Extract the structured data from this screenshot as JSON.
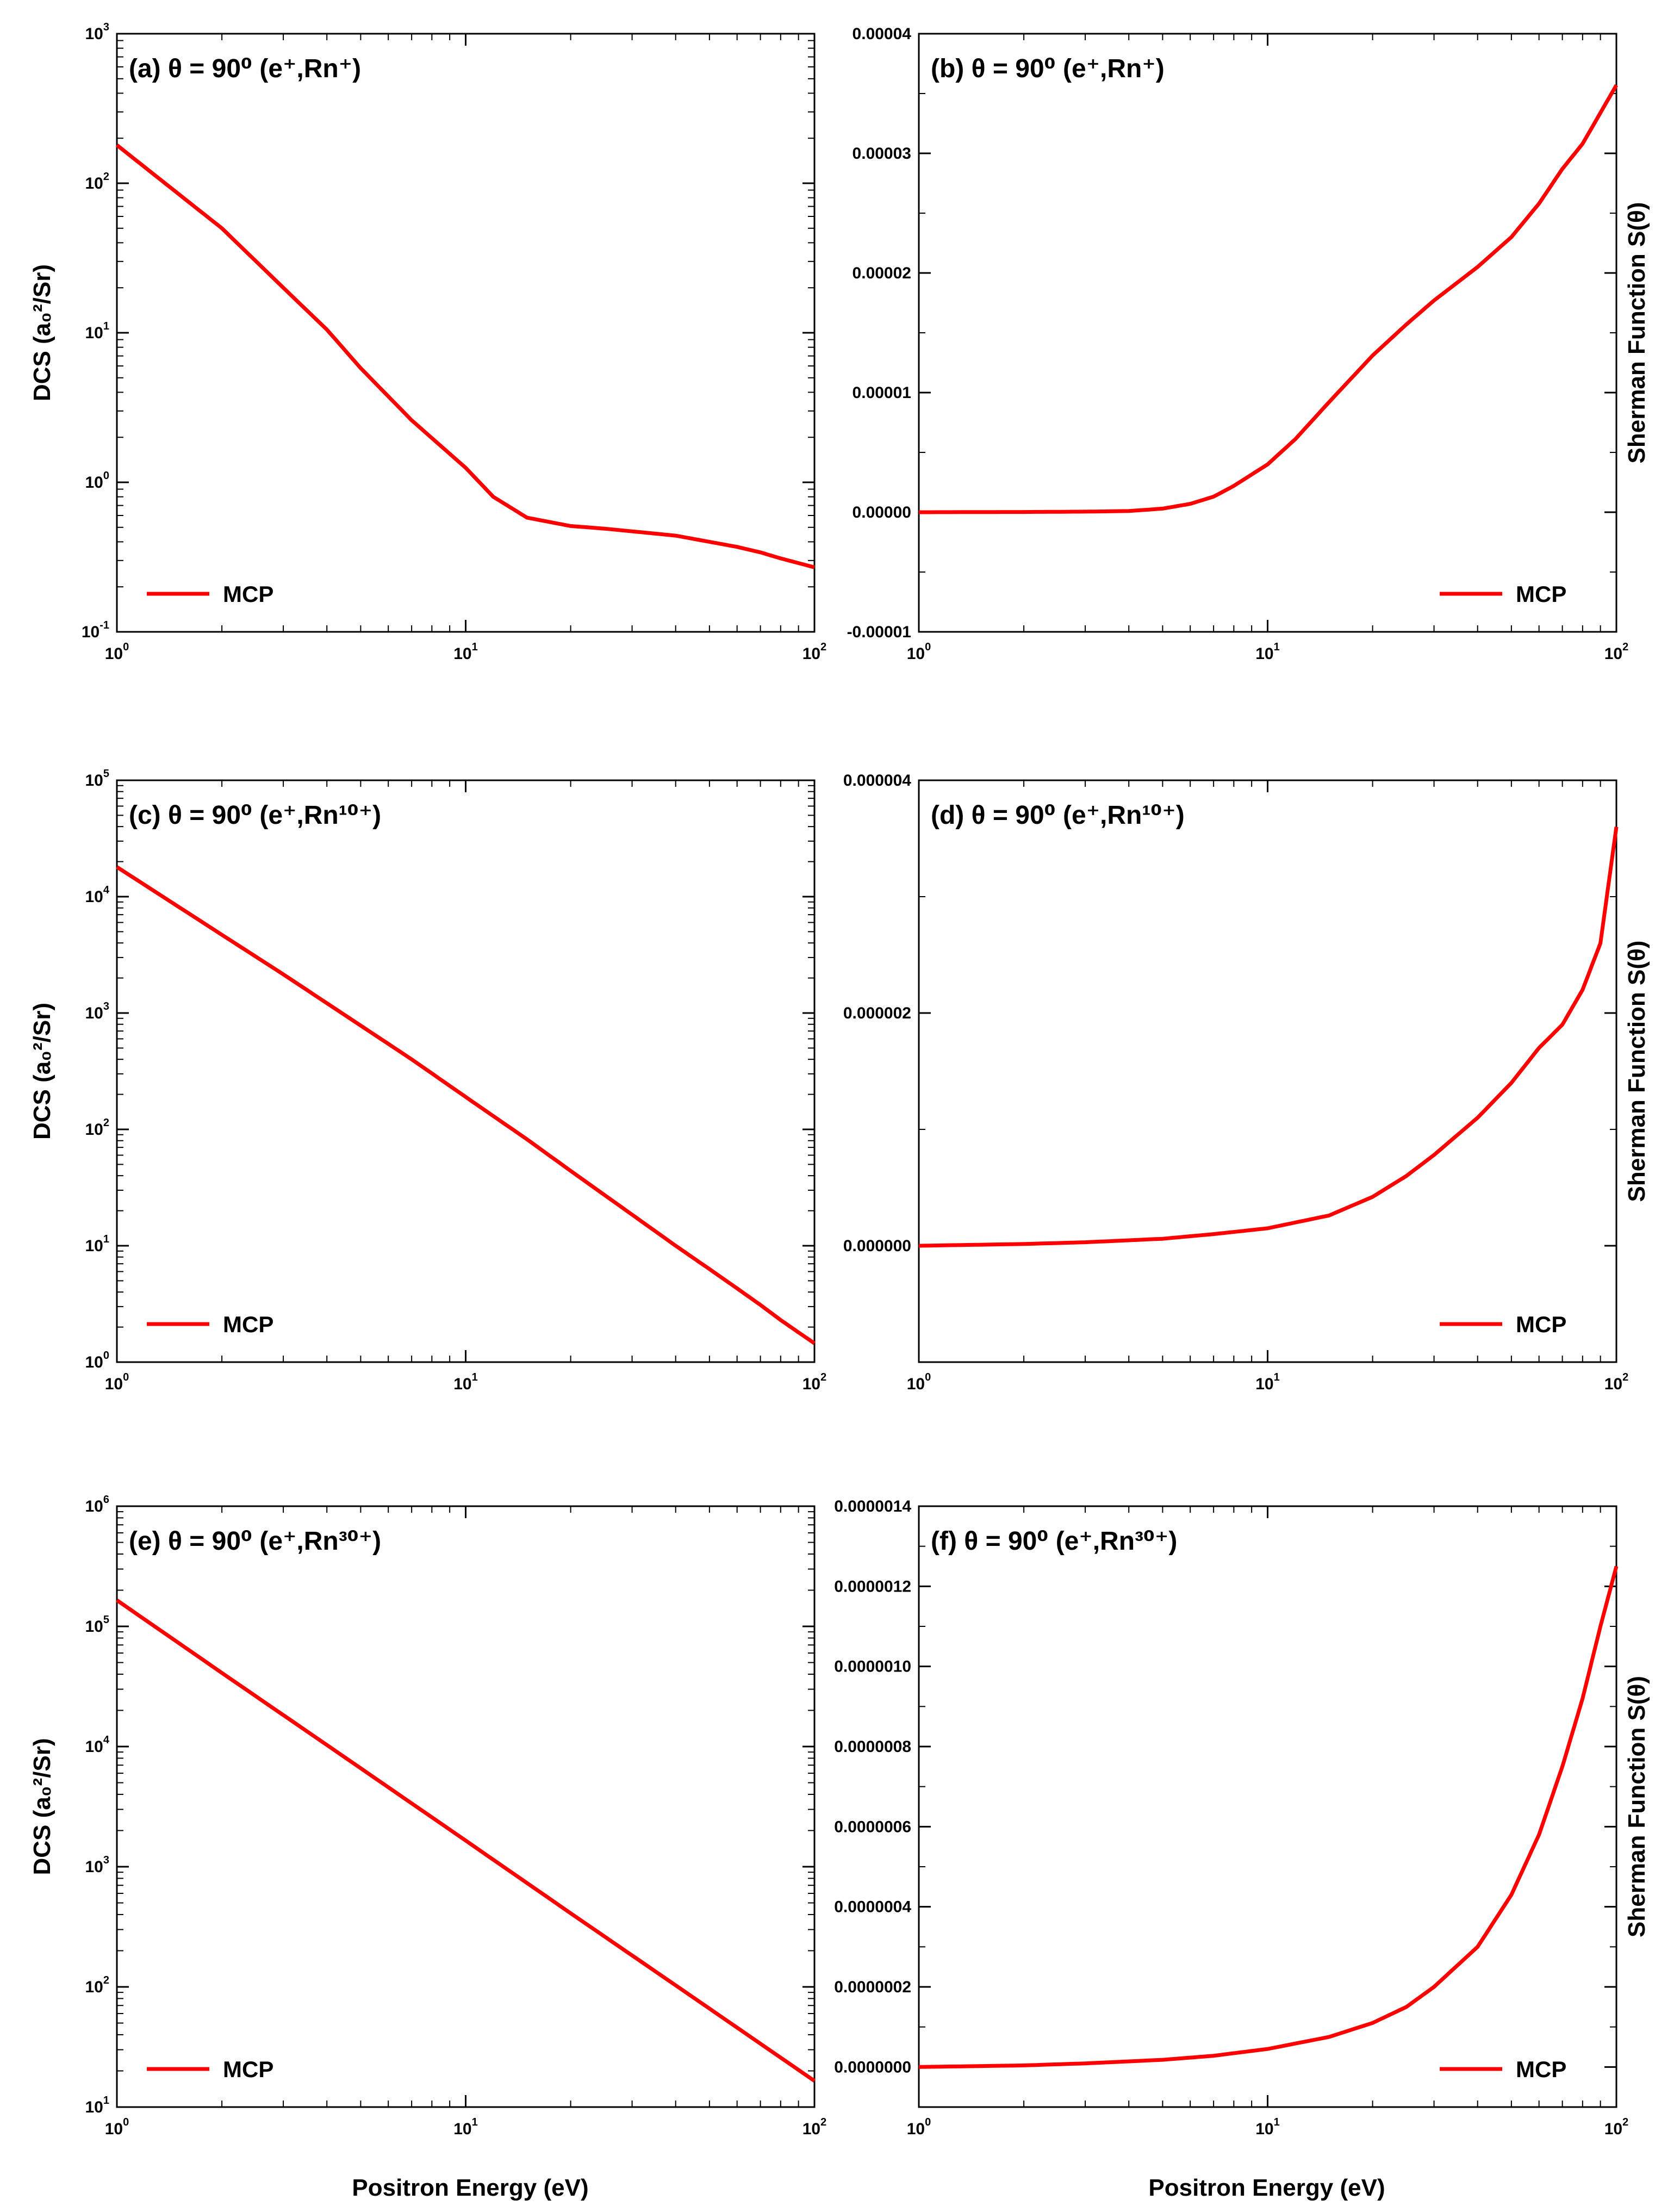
{
  "figure": {
    "xlabel": "Positron Energy (eV)",
    "curve_color": "#ff0000"
  },
  "chart_data": [
    {
      "id": "a",
      "type": "line",
      "label": "(a)",
      "title": "θ = 90⁰ (e⁺,Rn⁺)",
      "ylabel": "DCS (a₀²/Sr)",
      "yscale": "log",
      "xscale": "log",
      "xlim": [
        1,
        100
      ],
      "ylim": [
        0.1,
        1000
      ],
      "xticks": [
        1,
        10,
        100
      ],
      "yticks": [
        0.1,
        1,
        10,
        100,
        1000
      ],
      "legend": "MCP",
      "legend_position": "bottom-left",
      "series": [
        {
          "name": "MCP",
          "x": [
            1,
            1.5,
            2,
            3,
            4,
            5,
            7,
            10,
            12,
            15,
            20,
            25,
            30,
            40,
            50,
            60,
            70,
            80,
            100
          ],
          "y": [
            180,
            85,
            50,
            20,
            10.5,
            5.8,
            2.6,
            1.25,
            0.8,
            0.58,
            0.51,
            0.49,
            0.47,
            0.44,
            0.4,
            0.37,
            0.34,
            0.31,
            0.27
          ]
        }
      ]
    },
    {
      "id": "b",
      "type": "line",
      "label": "(b)",
      "title": "θ = 90⁰ (e⁺,Rn⁺)",
      "ylabel": "Sherman Function S(θ)",
      "yscale": "linear",
      "xscale": "log",
      "xlim": [
        1,
        100
      ],
      "ylim": [
        -1e-05,
        4e-05
      ],
      "xticks": [
        1,
        10,
        100
      ],
      "yticks": [
        -1e-05,
        0,
        1e-05,
        2e-05,
        3e-05,
        4e-05
      ],
      "yticklabels": [
        "-0.00001",
        "0.00000",
        "0.00001",
        "0.00002",
        "0.00003",
        "0.00004"
      ],
      "legend": "MCP",
      "legend_position": "bottom-right",
      "series": [
        {
          "name": "MCP",
          "x": [
            1,
            2,
            3,
            4,
            5,
            6,
            7,
            8,
            10,
            12,
            15,
            20,
            25,
            30,
            40,
            50,
            60,
            70,
            80,
            100
          ],
          "y": [
            0,
            2e-08,
            5e-08,
            1e-07,
            3e-07,
            7e-07,
            1.3e-06,
            2.2e-06,
            4e-06,
            6.1e-06,
            9.2e-06,
            1.31e-05,
            1.57e-05,
            1.77e-05,
            2.05e-05,
            2.3e-05,
            2.58e-05,
            2.87e-05,
            3.08e-05,
            3.57e-05
          ]
        }
      ]
    },
    {
      "id": "c",
      "type": "line",
      "label": "(c)",
      "title": "θ = 90⁰ (e⁺,Rn¹⁰⁺)",
      "ylabel": "DCS (a₀²/Sr)",
      "yscale": "log",
      "xscale": "log",
      "xlim": [
        1,
        100
      ],
      "ylim": [
        1,
        100000
      ],
      "xticks": [
        1,
        10,
        100
      ],
      "yticks": [
        1,
        10,
        100,
        1000,
        10000,
        100000
      ],
      "legend": "MCP",
      "legend_position": "bottom-left",
      "series": [
        {
          "name": "MCP",
          "x": [
            1,
            2,
            3,
            5,
            7,
            10,
            15,
            20,
            30,
            40,
            50,
            60,
            70,
            80,
            90,
            100
          ],
          "y": [
            18000,
            4700,
            2150,
            780,
            400,
            190,
            82,
            44,
            18.5,
            10,
            6.3,
            4.3,
            3.1,
            2.3,
            1.8,
            1.45
          ]
        }
      ]
    },
    {
      "id": "d",
      "type": "line",
      "label": "(d)",
      "title": "θ = 90⁰ (e⁺,Rn¹⁰⁺)",
      "ylabel": "Sherman Function S(θ)",
      "yscale": "linear",
      "xscale": "log",
      "xlim": [
        1,
        100
      ],
      "ylim": [
        -1e-06,
        4e-06
      ],
      "xticks": [
        1,
        10,
        100
      ],
      "yticks": [
        0,
        2e-06,
        4e-06
      ],
      "yticklabels": [
        "0.000000",
        "0.000002",
        "0.000004"
      ],
      "legend": "MCP",
      "legend_position": "bottom-right",
      "series": [
        {
          "name": "MCP",
          "x": [
            1,
            2,
            3,
            5,
            7,
            10,
            15,
            20,
            25,
            30,
            40,
            50,
            60,
            70,
            80,
            90,
            100
          ],
          "y": [
            0,
            1.5e-08,
            3e-08,
            6e-08,
            1e-07,
            1.5e-07,
            2.6e-07,
            4.2e-07,
            6e-07,
            7.8e-07,
            1.1e-06,
            1.4e-06,
            1.7e-06,
            1.9e-06,
            2.2e-06,
            2.6e-06,
            3.6e-06
          ]
        }
      ]
    },
    {
      "id": "e",
      "type": "line",
      "label": "(e)",
      "title": "θ = 90⁰ (e⁺,Rn³⁰⁺)",
      "ylabel": "DCS (a₀²/Sr)",
      "yscale": "log",
      "xscale": "log",
      "xlim": [
        1,
        100
      ],
      "ylim": [
        10,
        1000000
      ],
      "xticks": [
        1,
        10,
        100
      ],
      "yticks": [
        10,
        100,
        1000,
        10000,
        100000,
        1000000
      ],
      "legend": "MCP",
      "legend_position": "bottom-left",
      "series": [
        {
          "name": "MCP",
          "x": [
            1,
            2,
            5,
            10,
            20,
            50,
            100
          ],
          "y": [
            165000,
            41000,
            6600,
            1650,
            410,
            66,
            16.5
          ]
        }
      ]
    },
    {
      "id": "f",
      "type": "line",
      "label": "(f)",
      "title": "θ = 90⁰ (e⁺,Rn³⁰⁺)",
      "ylabel": "Sherman Function S(θ)",
      "yscale": "linear",
      "xscale": "log",
      "xlim": [
        1,
        100
      ],
      "ylim": [
        -1e-07,
        1.4e-06
      ],
      "xticks": [
        1,
        10,
        100
      ],
      "yticks": [
        0,
        2e-07,
        4e-07,
        6e-07,
        8e-07,
        1e-06,
        1.2e-06,
        1.4e-06
      ],
      "yticklabels": [
        "0.0000000",
        "0.0000002",
        "0.0000004",
        "0.0000006",
        "0.0000008",
        "0.0000010",
        "0.0000012",
        "0.0000014"
      ],
      "legend": "MCP",
      "legend_position": "bottom-right",
      "series": [
        {
          "name": "MCP",
          "x": [
            1,
            2,
            3,
            5,
            7,
            10,
            15,
            20,
            25,
            30,
            40,
            50,
            60,
            70,
            80,
            90,
            100
          ],
          "y": [
            0,
            4e-09,
            9e-09,
            1.8e-08,
            2.8e-08,
            4.5e-08,
            7.5e-08,
            1.1e-07,
            1.5e-07,
            2e-07,
            3e-07,
            4.3e-07,
            5.8e-07,
            7.5e-07,
            9.2e-07,
            1.1e-06,
            1.25e-06
          ]
        }
      ]
    }
  ]
}
